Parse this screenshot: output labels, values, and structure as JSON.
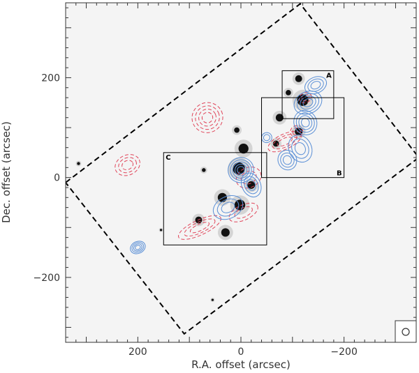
{
  "chart_data": {
    "type": "scatter",
    "title": "",
    "xlabel": "R.A. offset (arcsec)",
    "ylabel": "Dec. offset (arcsec)",
    "xlim": [
      340,
      -340
    ],
    "ylim": [
      -330,
      350
    ],
    "x_ticks": [
      200,
      0,
      -200
    ],
    "y_ticks": [
      200,
      0,
      -200
    ],
    "x_tick_labels": [
      "200",
      "0",
      "−200"
    ],
    "y_tick_labels": [
      "200",
      "0",
      "−200"
    ],
    "grid": false,
    "legend": "none",
    "colors": {
      "background": "#f4f4f4",
      "blue_contours": "#5a8fd6",
      "red_contours": "#e0455a",
      "mosaic_boundary": "#000000",
      "sources": "#111111"
    },
    "mosaic_boundary": [
      [
        340,
        -10
      ],
      [
        -115,
        348
      ],
      [
        -345,
        40
      ],
      [
        110,
        -313
      ]
    ],
    "boxes": [
      {
        "label": "A",
        "x": [
          -80,
          -180
        ],
        "y": [
          214,
          118
        ]
      },
      {
        "label": "B",
        "x": [
          -40,
          -200
        ],
        "y": [
          160,
          0
        ]
      },
      {
        "label": "C",
        "x": [
          150,
          -50
        ],
        "y": [
          50,
          -135
        ]
      }
    ],
    "sources": [
      {
        "x": -120,
        "y": 155,
        "size": 15
      },
      {
        "x": -112,
        "y": 198,
        "size": 9
      },
      {
        "x": -92,
        "y": 170,
        "size": 7
      },
      {
        "x": -75,
        "y": 120,
        "size": 10
      },
      {
        "x": -112,
        "y": 92,
        "size": 10
      },
      {
        "x": -68,
        "y": 68,
        "size": 8
      },
      {
        "x": 8,
        "y": 95,
        "size": 7
      },
      {
        "x": -5,
        "y": 58,
        "size": 13
      },
      {
        "x": 4,
        "y": 18,
        "size": 16
      },
      {
        "x": -20,
        "y": -15,
        "size": 10
      },
      {
        "x": 36,
        "y": -40,
        "size": 12
      },
      {
        "x": 2,
        "y": -55,
        "size": 14
      },
      {
        "x": 82,
        "y": -85,
        "size": 9
      },
      {
        "x": 30,
        "y": -110,
        "size": 11
      },
      {
        "x": 72,
        "y": 15,
        "size": 5
      },
      {
        "x": 315,
        "y": 28,
        "size": 4
      },
      {
        "x": 155,
        "y": -105,
        "size": 3
      },
      {
        "x": 55,
        "y": -245,
        "size": 3
      }
    ],
    "blue_contours": [
      {
        "x": -130,
        "y": 150,
        "rx": 28,
        "ry": 22,
        "levels": 4
      },
      {
        "x": -145,
        "y": 185,
        "rx": 22,
        "ry": 16,
        "levels": 3
      },
      {
        "x": -125,
        "y": 110,
        "rx": 22,
        "ry": 25,
        "levels": 4
      },
      {
        "x": -115,
        "y": 58,
        "rx": 22,
        "ry": 28,
        "levels": 3
      },
      {
        "x": -90,
        "y": 35,
        "rx": 18,
        "ry": 20,
        "levels": 3
      },
      {
        "x": 0,
        "y": 15,
        "rx": 25,
        "ry": 25,
        "levels": 5
      },
      {
        "x": -20,
        "y": -15,
        "rx": 18,
        "ry": 25,
        "levels": 3
      },
      {
        "x": 25,
        "y": -60,
        "rx": 30,
        "ry": 22,
        "levels": 3
      },
      {
        "x": 200,
        "y": -140,
        "rx": 15,
        "ry": 12,
        "levels": 4
      },
      {
        "x": -50,
        "y": 80,
        "rx": 10,
        "ry": 10,
        "levels": 2
      }
    ],
    "red_contours": [
      {
        "x": 65,
        "y": 120,
        "rx": 30,
        "ry": 30,
        "levels": 4
      },
      {
        "x": 220,
        "y": 25,
        "rx": 25,
        "ry": 20,
        "levels": 3
      },
      {
        "x": -85,
        "y": 72,
        "rx": 35,
        "ry": 15,
        "levels": 3
      },
      {
        "x": -15,
        "y": 0,
        "rx": 25,
        "ry": 20,
        "levels": 2
      },
      {
        "x": -5,
        "y": -70,
        "rx": 30,
        "ry": 15,
        "levels": 2
      },
      {
        "x": 80,
        "y": -100,
        "rx": 45,
        "ry": 15,
        "levels": 3
      },
      {
        "x": -108,
        "y": 92,
        "rx": 12,
        "ry": 12,
        "levels": 2
      },
      {
        "x": -125,
        "y": 160,
        "rx": 12,
        "ry": 10,
        "levels": 2
      }
    ]
  }
}
